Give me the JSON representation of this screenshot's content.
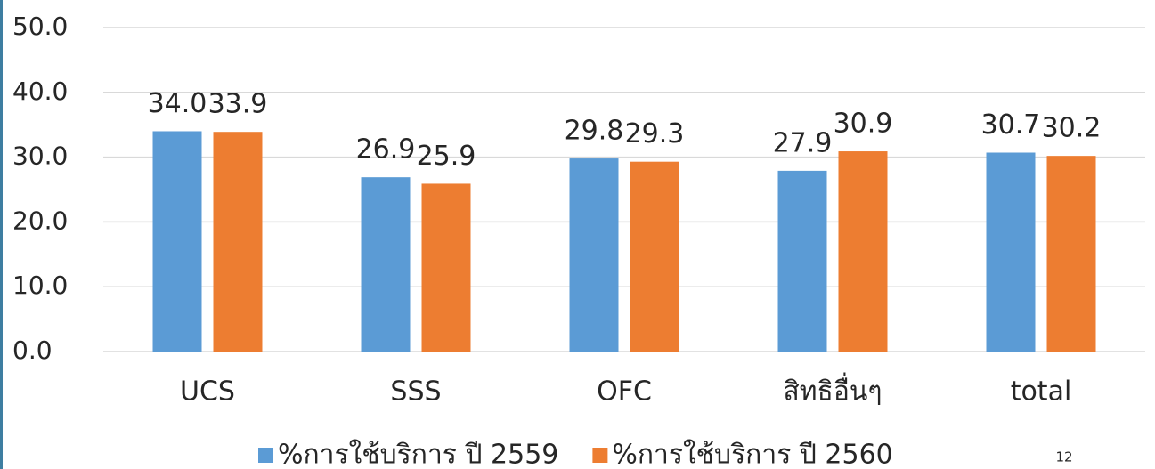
{
  "chart_data": {
    "type": "bar",
    "categories": [
      "UCS",
      "SSS",
      "OFC",
      "สิทธิอื่นๆ",
      "total"
    ],
    "series": [
      {
        "name": "%การใช้บริการ ปี 2559",
        "color": "#5b9bd5",
        "values": [
          34.0,
          26.9,
          29.8,
          27.9,
          30.7
        ],
        "value_labels": [
          "34.0",
          "26.9",
          "29.8",
          "27.9",
          "30.7"
        ]
      },
      {
        "name": "%การใช้บริการ ปี 2560",
        "color": "#ed7d31",
        "values": [
          33.9,
          25.9,
          29.3,
          30.9,
          30.2
        ],
        "value_labels": [
          "33.9",
          "25.9",
          "29.3",
          "30.9",
          "30.2"
        ]
      }
    ],
    "ylim": [
      0,
      50
    ],
    "yticks": [
      {
        "value": 0,
        "label": "0.0"
      },
      {
        "value": 10,
        "label": "10.0"
      },
      {
        "value": 20,
        "label": "20.0"
      },
      {
        "value": 30,
        "label": "30.0"
      },
      {
        "value": 40,
        "label": "40.0"
      },
      {
        "value": 50,
        "label": "50.0"
      }
    ],
    "grid": true,
    "legend": "bottom"
  },
  "page_number": "12"
}
